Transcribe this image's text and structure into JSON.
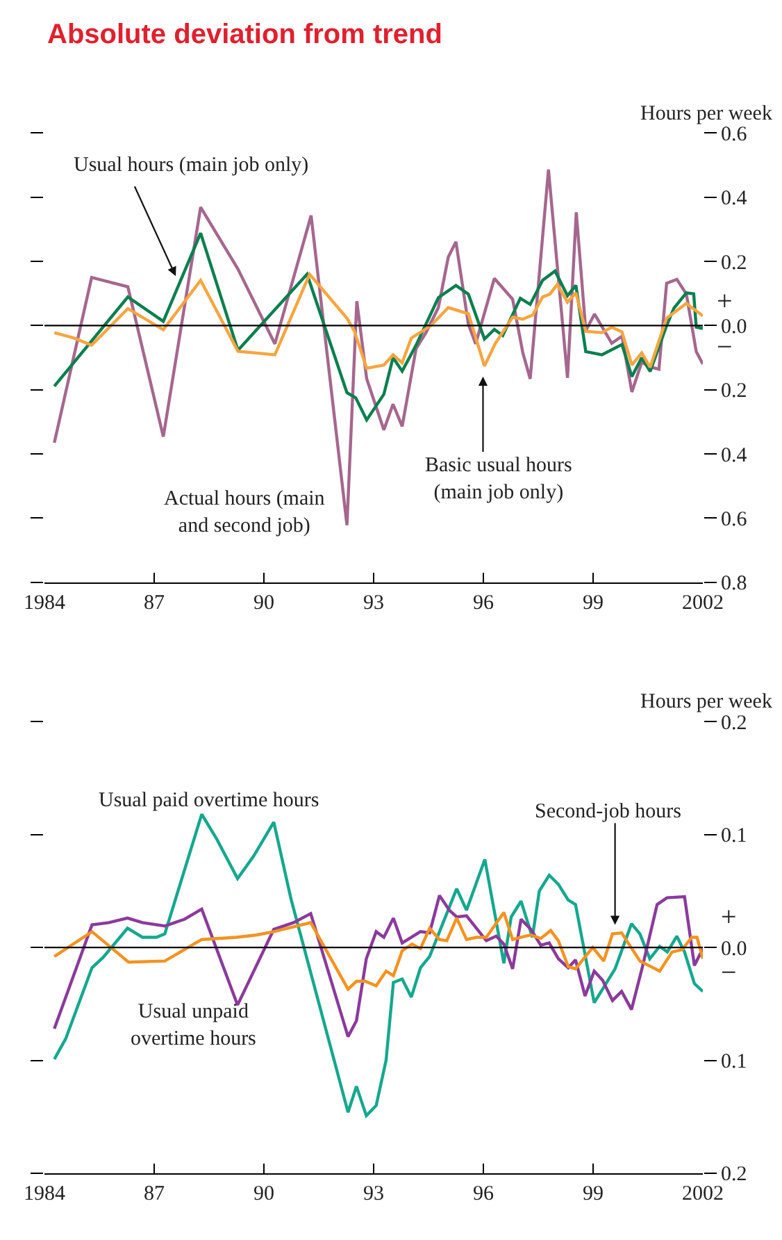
{
  "chart_data": [
    {
      "type": "line",
      "title": "Absolute deviation from trend",
      "ylabel": "Hours per week",
      "xlim": [
        1984,
        2002
      ],
      "xticks": [
        1984,
        {
          "value": 1987,
          "label": "87"
        },
        {
          "value": 1990,
          "label": "90"
        },
        {
          "value": 1993,
          "label": "93"
        },
        {
          "value": 1996,
          "label": "96"
        },
        {
          "value": 1999,
          "label": "99"
        },
        2002
      ],
      "ylim": [
        -0.8,
        0.6
      ],
      "yticks": [
        0.6,
        0.4,
        0.2,
        {
          "value": 0,
          "label": "0.0"
        },
        {
          "value": -0.2,
          "label": "0.2"
        },
        {
          "value": -0.4,
          "label": "0.4"
        },
        {
          "value": -0.6,
          "label": "0.6"
        },
        {
          "value": -0.8,
          "label": "0.8"
        }
      ],
      "ref_lines": [
        {
          "axis": "y",
          "value": 0,
          "color": "#000000"
        }
      ],
      "annotations": [
        "+",
        "−"
      ],
      "series": [
        {
          "name": "Actual hours (main and second job)",
          "color": "#a5678e",
          "x": [
            1984.27,
            1985.29,
            1986.28,
            1987.25,
            1988.27,
            1989.29,
            1990.3,
            1991.29,
            1992.27,
            1992.54,
            1992.81,
            1993.28,
            1993.53,
            1993.78,
            1994.16,
            1994.43,
            1994.77,
            1995.04,
            1995.25,
            1995.59,
            1995.79,
            1996.3,
            1996.8,
            1997.08,
            1997.28,
            1997.78,
            1998.3,
            1998.54,
            1998.8,
            1999.04,
            1999.51,
            1999.79,
            2000.06,
            2000.33,
            2000.56,
            2000.8,
            2001.01,
            2001.29,
            2001.55,
            2001.82,
            2002.0
          ],
          "values": [
            -0.365,
            0.15,
            0.121,
            -0.346,
            0.369,
            0.176,
            -0.057,
            0.343,
            -0.622,
            0.076,
            -0.166,
            -0.325,
            -0.245,
            -0.314,
            -0.072,
            -0.022,
            0.056,
            0.213,
            0.261,
            0.004,
            -0.057,
            0.147,
            0.082,
            -0.085,
            -0.166,
            0.486,
            -0.163,
            0.353,
            -0.016,
            0.036,
            -0.055,
            -0.033,
            -0.207,
            -0.114,
            -0.129,
            -0.136,
            0.132,
            0.144,
            0.098,
            -0.081,
            -0.12
          ]
        },
        {
          "name": "Usual hours (main job only)",
          "color": "#0a7f4f",
          "x": [
            1984.27,
            1986.28,
            1987.25,
            1988.27,
            1989.29,
            1991.18,
            1992.27,
            1992.51,
            1992.81,
            1993.28,
            1993.53,
            1993.78,
            1994.16,
            1994.77,
            1995.25,
            1995.59,
            1996.03,
            1996.3,
            1996.53,
            1997.01,
            1997.28,
            1997.62,
            1997.96,
            1998.3,
            1998.53,
            1998.8,
            1999.24,
            1999.79,
            2000.06,
            2000.33,
            2000.56,
            2001.01,
            2001.21,
            2001.55,
            2001.75,
            2001.82,
            2002.0
          ],
          "values": [
            -0.189,
            0.089,
            0.013,
            0.288,
            -0.077,
            0.16,
            -0.209,
            -0.225,
            -0.294,
            -0.214,
            -0.1,
            -0.142,
            -0.061,
            0.087,
            0.125,
            0.098,
            -0.042,
            -0.012,
            -0.031,
            0.085,
            0.066,
            0.141,
            0.17,
            0.093,
            0.125,
            -0.081,
            -0.091,
            -0.059,
            -0.159,
            -0.1,
            -0.143,
            0.0,
            0.054,
            0.102,
            0.099,
            -0.005,
            -0.009
          ]
        },
        {
          "name": "Basic usual hours (main job only)",
          "color": "#f7a540",
          "x": [
            1984.27,
            1984.81,
            1985.29,
            1986.28,
            1987.25,
            1988.27,
            1989.29,
            1990.3,
            1991.25,
            1992.27,
            1992.47,
            1992.81,
            1993.28,
            1993.53,
            1993.78,
            1994.03,
            1994.57,
            1995.04,
            1995.59,
            1996.03,
            1996.33,
            1996.8,
            1997.08,
            1997.35,
            1997.62,
            1997.82,
            1998.02,
            1998.3,
            1998.53,
            1998.8,
            1999.24,
            1999.51,
            1999.79,
            2000.06,
            2000.33,
            2000.56,
            2001.01,
            2001.55,
            2002.0
          ],
          "values": [
            -0.022,
            -0.039,
            -0.061,
            0.053,
            -0.013,
            0.141,
            -0.08,
            -0.091,
            0.16,
            0.023,
            -0.016,
            -0.133,
            -0.123,
            -0.091,
            -0.116,
            -0.039,
            0.0,
            0.056,
            0.037,
            -0.126,
            -0.055,
            0.026,
            0.02,
            0.033,
            0.089,
            0.098,
            0.128,
            0.073,
            0.102,
            -0.018,
            -0.022,
            -0.005,
            -0.02,
            -0.123,
            -0.085,
            -0.13,
            0.023,
            0.069,
            0.03
          ]
        }
      ]
    },
    {
      "type": "line",
      "ylabel": "Hours per week",
      "xlim": [
        1984,
        2002
      ],
      "xticks": [
        1984,
        {
          "value": 1987,
          "label": "87"
        },
        {
          "value": 1990,
          "label": "90"
        },
        {
          "value": 1993,
          "label": "93"
        },
        {
          "value": 1996,
          "label": "96"
        },
        {
          "value": 1999,
          "label": "99"
        },
        2002
      ],
      "ylim": [
        -0.2,
        0.2
      ],
      "yticks": [
        0.2,
        0.1,
        {
          "value": 0,
          "label": "0.0"
        },
        {
          "value": -0.1,
          "label": "0.1"
        },
        {
          "value": -0.2,
          "label": "0.2"
        }
      ],
      "ref_lines": [
        {
          "axis": "y",
          "value": 0,
          "color": "#000000"
        }
      ],
      "annotations": [
        "+",
        "−"
      ],
      "series": [
        {
          "name": "Usual paid overtime hours",
          "color": "#14a88e",
          "x": [
            1984.27,
            1984.58,
            1985.3,
            1985.6,
            1986.27,
            1986.68,
            1987.06,
            1987.29,
            1988.3,
            1988.71,
            1989.28,
            1989.72,
            1990.27,
            1990.74,
            1992.3,
            1992.53,
            1992.8,
            1993.07,
            1993.34,
            1993.54,
            1993.78,
            1994.03,
            1994.28,
            1994.53,
            1995.27,
            1995.54,
            1996.04,
            1996.56,
            1996.76,
            1997.03,
            1997.34,
            1997.53,
            1997.8,
            1998.05,
            1998.32,
            1998.52,
            1999.03,
            1999.6,
            2000.05,
            2000.28,
            2000.55,
            2000.82,
            2001.03,
            2001.29,
            2001.5,
            2001.77,
            2002.0
          ],
          "values": [
            -0.099,
            -0.081,
            -0.018,
            -0.009,
            0.017,
            0.009,
            0.009,
            0.012,
            0.118,
            0.096,
            0.061,
            0.081,
            0.111,
            0.043,
            -0.146,
            -0.123,
            -0.149,
            -0.14,
            -0.1,
            -0.031,
            -0.028,
            -0.044,
            -0.018,
            -0.008,
            0.052,
            0.033,
            0.078,
            -0.014,
            0.027,
            0.041,
            0.009,
            0.05,
            0.064,
            0.056,
            0.042,
            0.038,
            -0.049,
            -0.019,
            0.021,
            0.012,
            -0.01,
            0.001,
            -0.004,
            0.01,
            -0.004,
            -0.032,
            -0.039
          ]
        },
        {
          "name": "Usual unpaid overtime hours",
          "color": "#8b3a9c",
          "x": [
            1984.27,
            1985.3,
            1985.76,
            1986.27,
            1986.68,
            1987.29,
            1987.83,
            1988.3,
            1989.28,
            1990.27,
            1990.81,
            1991.28,
            1992.3,
            1992.53,
            1992.8,
            1993.07,
            1993.28,
            1993.54,
            1993.78,
            1994.28,
            1994.53,
            1994.8,
            1995.07,
            1995.27,
            1995.54,
            1996.08,
            1996.35,
            1996.56,
            1996.8,
            1997.03,
            1997.3,
            1997.57,
            1997.8,
            1998.05,
            1998.32,
            1998.52,
            1998.78,
            1999.03,
            1999.26,
            1999.53,
            1999.78,
            2000.05,
            2000.35,
            2000.75,
            2001.02,
            2001.5,
            2001.77,
            2002.0
          ],
          "values": [
            -0.072,
            0.02,
            0.022,
            0.026,
            0.022,
            0.019,
            0.025,
            0.034,
            -0.051,
            0.016,
            0.022,
            0.03,
            -0.079,
            -0.065,
            -0.01,
            0.014,
            0.009,
            0.026,
            0.004,
            0.014,
            0.013,
            0.046,
            0.033,
            0.027,
            0.028,
            0.006,
            0.01,
            0.003,
            -0.019,
            0.025,
            0.016,
            0.002,
            0.004,
            -0.01,
            -0.018,
            -0.011,
            -0.043,
            -0.021,
            -0.029,
            -0.047,
            -0.039,
            -0.055,
            -0.017,
            0.038,
            0.044,
            0.045,
            -0.016,
            -0.001
          ]
        },
        {
          "name": "Second-job hours",
          "color": "#f39320",
          "x": [
            1984.27,
            1985.3,
            1986.3,
            1987.29,
            1988.3,
            1989.25,
            1989.79,
            1990.27,
            1991.28,
            1992.3,
            1992.53,
            1992.77,
            1993.07,
            1993.34,
            1993.54,
            1993.78,
            1994.05,
            1994.28,
            1994.53,
            1994.8,
            1995.0,
            1995.27,
            1995.54,
            1995.81,
            1996.08,
            1996.56,
            1996.8,
            1997.03,
            1997.3,
            1997.57,
            1997.84,
            1998.05,
            1998.32,
            1998.52,
            1998.99,
            1999.29,
            1999.53,
            1999.78,
            2000.28,
            2000.82,
            2001.16,
            2001.43,
            2001.7,
            2001.84,
            2002.0
          ],
          "values": [
            -0.008,
            0.014,
            -0.013,
            -0.012,
            0.007,
            0.009,
            0.011,
            0.014,
            0.022,
            -0.037,
            -0.03,
            -0.03,
            -0.034,
            -0.021,
            -0.025,
            -0.003,
            0.003,
            -0.001,
            0.017,
            0.007,
            0.006,
            0.026,
            0.007,
            0.009,
            0.009,
            0.031,
            0.007,
            0.009,
            0.011,
            0.008,
            0.015,
            0.006,
            -0.017,
            -0.019,
            0.0,
            -0.012,
            0.012,
            0.013,
            -0.012,
            -0.021,
            -0.004,
            -0.002,
            0.009,
            0.009,
            -0.01
          ]
        }
      ]
    }
  ]
}
